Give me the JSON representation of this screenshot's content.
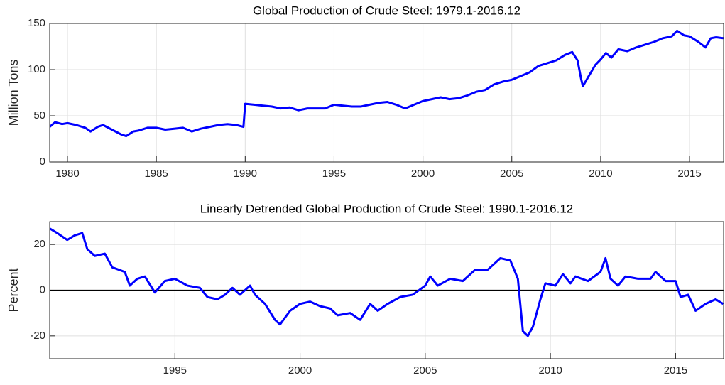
{
  "chart_data": [
    {
      "type": "line",
      "title": "Global Production of Crude Steel: 1979.1-2016.12",
      "y_label": "Million Tons",
      "color": "#0000ff",
      "grid": true,
      "xlim": [
        1979,
        2016.917
      ],
      "xticks": [
        1980,
        1985,
        1990,
        1995,
        2000,
        2005,
        2010,
        2015
      ],
      "ylim": [
        0,
        150
      ],
      "yticks": [
        0,
        50,
        100,
        150
      ],
      "x": [
        1979.0,
        1979.3,
        1979.7,
        1980.0,
        1980.5,
        1981.0,
        1981.3,
        1981.7,
        1982.0,
        1982.5,
        1983.0,
        1983.3,
        1983.7,
        1984.0,
        1984.5,
        1985.0,
        1985.5,
        1986.0,
        1986.5,
        1987.0,
        1987.5,
        1988.0,
        1988.5,
        1989.0,
        1989.5,
        1989.9,
        1990.0,
        1990.5,
        1991.0,
        1991.5,
        1992.0,
        1992.5,
        1993.0,
        1993.5,
        1994.0,
        1994.5,
        1995.0,
        1995.5,
        1996.0,
        1996.5,
        1997.0,
        1997.5,
        1998.0,
        1998.5,
        1999.0,
        1999.5,
        2000.0,
        2000.5,
        2001.0,
        2001.5,
        2002.0,
        2002.5,
        2003.0,
        2003.5,
        2004.0,
        2004.5,
        2005.0,
        2005.5,
        2006.0,
        2006.5,
        2007.0,
        2007.5,
        2008.0,
        2008.4,
        2008.7,
        2008.9,
        2009.0,
        2009.3,
        2009.7,
        2010.0,
        2010.3,
        2010.6,
        2011.0,
        2011.5,
        2012.0,
        2012.5,
        2013.0,
        2013.5,
        2014.0,
        2014.3,
        2014.7,
        2015.0,
        2015.5,
        2015.9,
        2016.2,
        2016.5,
        2016.9
      ],
      "values": [
        38,
        43,
        41,
        42,
        40,
        37,
        33,
        38,
        40,
        35,
        30,
        28,
        33,
        34,
        37,
        37,
        35,
        36,
        37,
        33,
        36,
        38,
        40,
        41,
        40,
        38,
        63,
        62,
        61,
        60,
        58,
        59,
        56,
        58,
        58,
        58,
        62,
        61,
        60,
        60,
        62,
        64,
        65,
        62,
        58,
        62,
        66,
        68,
        70,
        68,
        69,
        72,
        76,
        78,
        84,
        87,
        89,
        93,
        97,
        104,
        107,
        110,
        116,
        119,
        110,
        90,
        82,
        92,
        105,
        111,
        118,
        113,
        122,
        120,
        124,
        127,
        130,
        134,
        136,
        142,
        137,
        136,
        130,
        124,
        134,
        135,
        134
      ]
    },
    {
      "type": "line",
      "title": "Linearly Detrended Global Production of Crude Steel: 1990.1-2016.12",
      "y_label": "Percent",
      "color": "#0000ff",
      "grid": true,
      "zero_line": true,
      "xlim": [
        1990,
        2016.917
      ],
      "xticks": [
        1995,
        2000,
        2005,
        2010,
        2015
      ],
      "ylim": [
        -30,
        30
      ],
      "yticks": [
        -20,
        0,
        20
      ],
      "x": [
        1990.0,
        1990.3,
        1990.7,
        1991.0,
        1991.3,
        1991.5,
        1991.8,
        1992.2,
        1992.5,
        1993.0,
        1993.2,
        1993.5,
        1993.8,
        1994.2,
        1994.6,
        1995.0,
        1995.5,
        1996.0,
        1996.3,
        1996.7,
        1997.0,
        1997.3,
        1997.6,
        1998.0,
        1998.2,
        1998.6,
        1999.0,
        1999.2,
        1999.6,
        2000.0,
        2000.4,
        2000.8,
        2001.2,
        2001.5,
        2002.0,
        2002.4,
        2002.8,
        2003.1,
        2003.5,
        2004.0,
        2004.5,
        2005.0,
        2005.2,
        2005.5,
        2006.0,
        2006.5,
        2007.0,
        2007.5,
        2008.0,
        2008.4,
        2008.7,
        2008.9,
        2009.1,
        2009.3,
        2009.6,
        2009.8,
        2010.2,
        2010.5,
        2010.8,
        2011.0,
        2011.5,
        2012.0,
        2012.2,
        2012.4,
        2012.7,
        2013.0,
        2013.5,
        2014.0,
        2014.2,
        2014.6,
        2015.0,
        2015.2,
        2015.5,
        2015.8,
        2016.2,
        2016.6,
        2016.9
      ],
      "values": [
        27,
        25,
        22,
        24,
        25,
        18,
        15,
        16,
        10,
        8,
        2,
        5,
        6,
        -1,
        4,
        5,
        2,
        1,
        -3,
        -4,
        -2,
        1,
        -2,
        2,
        -2,
        -6,
        -13,
        -15,
        -9,
        -6,
        -5,
        -7,
        -8,
        -11,
        -10,
        -13,
        -6,
        -9,
        -6,
        -3,
        -2,
        2,
        6,
        2,
        5,
        4,
        9,
        9,
        14,
        13,
        5,
        -18,
        -20,
        -16,
        -4,
        3,
        2,
        7,
        3,
        6,
        4,
        8,
        14,
        5,
        2,
        6,
        5,
        5,
        8,
        4,
        4,
        -3,
        -2,
        -9,
        -6,
        -4,
        -6
      ]
    }
  ]
}
